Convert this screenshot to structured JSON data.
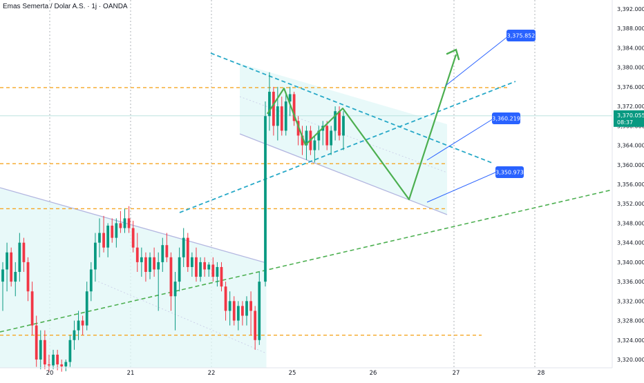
{
  "header": {
    "symbol": "Emas Semerta / Dolar A.S. · 1j · OANDA"
  },
  "colors": {
    "up": "#089981",
    "down": "#f23645",
    "level": "#f5a623",
    "channel_line": "#b3b6e0",
    "channel_fill": "#e0f7f7",
    "trend_dashed_blue": "#26a8c7",
    "trend_dashed_green": "#4caf50",
    "projection": "#4caf50",
    "callout_line": "#2962ff",
    "callout_fill": "#2962ff",
    "current_price": "#089981",
    "grid": "#9aa0a6"
  },
  "chart_data": {
    "type": "candlestick",
    "instrument": "Emas Semerta / Dolar A.S.",
    "timeframe": "1j",
    "source": "OANDA",
    "y_axis": {
      "ylim": [
        3317.5,
        3393.0
      ],
      "ticks": [
        "3,320.000",
        "3,324.000",
        "3,328.000",
        "3,332.000",
        "3,336.000",
        "3,340.000",
        "3,344.000",
        "3,348.000",
        "3,352.000",
        "3,356.000",
        "3,360.000",
        "3,364.000",
        "3,368.000",
        "3,372.000",
        "3,376.000",
        "3,380.000",
        "3,384.000",
        "3,388.000",
        "3,392.000"
      ]
    },
    "x_axis": {
      "range_days": [
        19.4,
        28.4
      ],
      "ticks": [
        {
          "day": 20,
          "label": "20"
        },
        {
          "day": 21,
          "label": "21"
        },
        {
          "day": 22,
          "label": "22"
        },
        {
          "day": 25,
          "label": "25"
        },
        {
          "day": 26,
          "label": "26"
        },
        {
          "day": 27,
          "label": "27"
        },
        {
          "day": 28,
          "label": "28"
        }
      ],
      "vertical_grid_days": [
        20,
        21,
        22,
        25,
        26,
        27
      ],
      "note": "x values are trading days; weekend 23–24 omitted"
    },
    "candles": [
      [
        3336.0,
        3340.0,
        3330.0,
        3338.5
      ],
      [
        3338.5,
        3344.0,
        3334.0,
        3342.0
      ],
      [
        3342.0,
        3343.0,
        3335.0,
        3336.0
      ],
      [
        3336.0,
        3340.0,
        3333.0,
        3338.0
      ],
      [
        3338.0,
        3346.0,
        3336.0,
        3344.0
      ],
      [
        3344.0,
        3345.0,
        3338.0,
        3340.0
      ],
      [
        3340.0,
        3341.0,
        3332.0,
        3334.0
      ],
      [
        3334.0,
        3336.0,
        3325.0,
        3327.0
      ],
      [
        3327.0,
        3329.0,
        3318.5,
        3320.0
      ],
      [
        3320.0,
        3326.0,
        3318.0,
        3324.0
      ],
      [
        3324.0,
        3326.0,
        3318.0,
        3319.0
      ],
      [
        3319.0,
        3321.0,
        3317.5,
        3318.8
      ],
      [
        3318.8,
        3322.0,
        3318.0,
        3321.0
      ],
      [
        3321.0,
        3322.0,
        3317.8,
        3319.0
      ],
      [
        3319.0,
        3320.0,
        3317.5,
        3318.6
      ],
      [
        3318.6,
        3320.0,
        3317.6,
        3319.5
      ],
      [
        3319.5,
        3325.0,
        3318.5,
        3324.0
      ],
      [
        3324.0,
        3328.0,
        3322.0,
        3326.0
      ],
      [
        3326.0,
        3330.0,
        3324.0,
        3328.0
      ],
      [
        3328.0,
        3329.0,
        3325.0,
        3327.0
      ],
      [
        3327.0,
        3336.0,
        3326.0,
        3334.0
      ],
      [
        3334.0,
        3340.0,
        3332.0,
        3338.5
      ],
      [
        3338.5,
        3346.0,
        3336.0,
        3344.0
      ],
      [
        3344.0,
        3349.0,
        3341.0,
        3346.0
      ],
      [
        3346.0,
        3349.5,
        3342.0,
        3343.0
      ],
      [
        3343.0,
        3348.0,
        3341.0,
        3347.5
      ],
      [
        3347.5,
        3349.0,
        3344.0,
        3345.0
      ],
      [
        3345.0,
        3349.0,
        3343.0,
        3348.0
      ],
      [
        3348.0,
        3350.5,
        3346.0,
        3347.0
      ],
      [
        3347.0,
        3351.0,
        3346.0,
        3349.0
      ],
      [
        3349.0,
        3351.5,
        3346.0,
        3347.0
      ],
      [
        3347.0,
        3348.5,
        3342.0,
        3343.0
      ],
      [
        3343.0,
        3346.0,
        3338.0,
        3340.0
      ],
      [
        3340.0,
        3343.0,
        3337.0,
        3341.0
      ],
      [
        3341.0,
        3342.0,
        3336.0,
        3338.0
      ],
      [
        3338.0,
        3342.0,
        3336.5,
        3341.0
      ],
      [
        3341.0,
        3343.0,
        3337.0,
        3338.5
      ],
      [
        3338.5,
        3342.0,
        3330.0,
        3340.0
      ],
      [
        3340.0,
        3345.0,
        3338.0,
        3343.5
      ],
      [
        3343.5,
        3346.0,
        3340.0,
        3341.0
      ],
      [
        3341.0,
        3342.0,
        3330.0,
        3333.0
      ],
      [
        3333.0,
        3338.0,
        3326.0,
        3336.0
      ],
      [
        3336.0,
        3343.0,
        3334.0,
        3341.0
      ],
      [
        3341.0,
        3347.0,
        3339.0,
        3345.0
      ],
      [
        3345.0,
        3346.0,
        3338.0,
        3339.0
      ],
      [
        3339.0,
        3342.0,
        3337.0,
        3341.0
      ],
      [
        3341.0,
        3343.0,
        3336.0,
        3337.0
      ],
      [
        3337.0,
        3341.0,
        3336.0,
        3340.0
      ],
      [
        3340.0,
        3341.0,
        3337.0,
        3338.5
      ],
      [
        3338.5,
        3340.0,
        3337.0,
        3339.5
      ],
      [
        3339.5,
        3341.0,
        3336.0,
        3337.0
      ],
      [
        3337.0,
        3340.0,
        3335.0,
        3339.0
      ],
      [
        3339.0,
        3340.0,
        3334.0,
        3335.0
      ],
      [
        3335.0,
        3336.0,
        3328.0,
        3330.0
      ],
      [
        3330.0,
        3334.0,
        3327.0,
        3332.0
      ],
      [
        3332.0,
        3333.0,
        3327.0,
        3328.0
      ],
      [
        3328.0,
        3332.0,
        3326.0,
        3331.0
      ],
      [
        3331.0,
        3332.0,
        3327.0,
        3329.0
      ],
      [
        3329.0,
        3333.0,
        3327.0,
        3332.0
      ],
      [
        3332.0,
        3334.0,
        3325.0,
        3330.0
      ],
      [
        3330.0,
        3331.0,
        3322.0,
        3324.0
      ],
      [
        3324.0,
        3338.0,
        3323.0,
        3336.0
      ],
      [
        3336.0,
        3373.0,
        3335.0,
        3370.0
      ],
      [
        3370.0,
        3379.0,
        3367.0,
        3375.0
      ],
      [
        3375.0,
        3376.0,
        3366.0,
        3368.0
      ],
      [
        3368.0,
        3376.0,
        3365.0,
        3372.0
      ],
      [
        3372.0,
        3374.0,
        3366.0,
        3367.0
      ],
      [
        3367.0,
        3375.0,
        3366.0,
        3373.0
      ],
      [
        3373.0,
        3376.0,
        3370.0,
        3374.5
      ],
      [
        3374.5,
        3375.0,
        3368.0,
        3369.0
      ],
      [
        3369.0,
        3370.0,
        3364.0,
        3366.0
      ],
      [
        3366.0,
        3368.0,
        3362.0,
        3364.0
      ],
      [
        3364.0,
        3368.0,
        3361.0,
        3367.0
      ],
      [
        3367.0,
        3368.0,
        3362.0,
        3363.0
      ],
      [
        3363.0,
        3366.0,
        3360.5,
        3365.0
      ],
      [
        3365.0,
        3368.0,
        3363.0,
        3367.0
      ],
      [
        3367.0,
        3369.0,
        3364.0,
        3368.0
      ],
      [
        3368.0,
        3369.0,
        3363.0,
        3364.0
      ],
      [
        3364.0,
        3368.0,
        3362.0,
        3367.0
      ],
      [
        3367.0,
        3372.0,
        3365.0,
        3371.0
      ],
      [
        3371.0,
        3372.0,
        3365.0,
        3366.0
      ],
      [
        3366.0,
        3371.0,
        3363.0,
        3370.0
      ]
    ],
    "horizontal_levels": [
      3375.852,
      3360.219,
      3350.973,
      3325.0
    ],
    "current_price": {
      "value": 3370.055,
      "label": "3,370.055",
      "countdown": "08:37"
    },
    "price_callouts": [
      "3,375.852",
      "3,360.219",
      "3,350.973"
    ]
  }
}
